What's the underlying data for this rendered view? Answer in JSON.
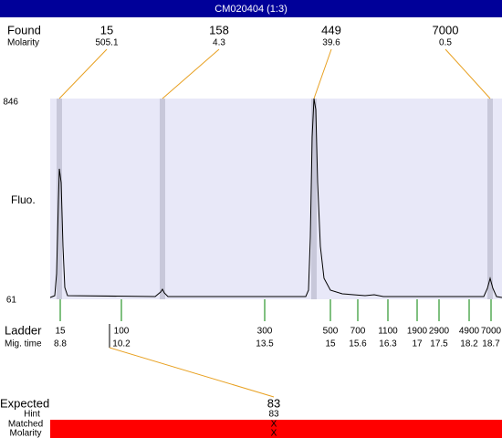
{
  "title": "CM020404 (1:3)",
  "found": {
    "label": "Found",
    "sublabel": "Molarity",
    "peaks": [
      {
        "size": "15",
        "molarity": "505.1"
      },
      {
        "size": "158",
        "molarity": "4.3"
      },
      {
        "size": "449",
        "molarity": "39.6"
      },
      {
        "size": "7000",
        "molarity": "0.5"
      }
    ]
  },
  "yaxis": {
    "max": "846",
    "min": "61",
    "label": "Fluo."
  },
  "ladder": {
    "label": "Ladder",
    "sublabel": "Mig. time",
    "items": [
      {
        "size": "15",
        "time": "8.8"
      },
      {
        "size": "100",
        "time": "10.2"
      },
      {
        "size": "300",
        "time": "13.5"
      },
      {
        "size": "500",
        "time": "15"
      },
      {
        "size": "700",
        "time": "15.6"
      },
      {
        "size": "1100",
        "time": "16.3"
      },
      {
        "size": "1900",
        "time": "17"
      },
      {
        "size": "2900",
        "time": "17.5"
      },
      {
        "size": "4900",
        "time": "18.2"
      },
      {
        "size": "7000",
        "time": "18.7"
      }
    ]
  },
  "expected": {
    "label": "Expected",
    "value": "83",
    "hint_label": "Hint",
    "hint_value": "83",
    "matched_label": "Matched",
    "matched_value": "X",
    "molarity_label": "Molarity",
    "molarity_value": "X"
  }
}
